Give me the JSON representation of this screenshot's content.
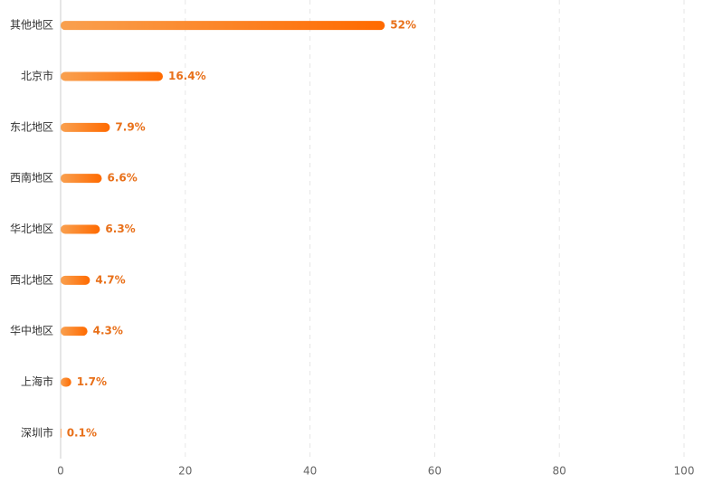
{
  "chart_data": {
    "type": "bar",
    "orientation": "horizontal",
    "categories": [
      "其他地区",
      "北京市",
      "东北地区",
      "西南地区",
      "华北地区",
      "西北地区",
      "华中地区",
      "上海市",
      "深圳市"
    ],
    "values": [
      52,
      16.4,
      7.9,
      6.6,
      6.3,
      4.7,
      4.3,
      1.7,
      0.1
    ],
    "value_labels": [
      "52%",
      "16.4%",
      "7.9%",
      "6.6%",
      "6.3%",
      "4.7%",
      "4.3%",
      "1.7%",
      "0.1%"
    ],
    "color": [
      "#f9a04f",
      "#ff6a00"
    ],
    "xlim": [
      0,
      100
    ],
    "xticks": [
      0,
      20,
      40,
      60,
      80,
      100
    ],
    "grid": true
  }
}
